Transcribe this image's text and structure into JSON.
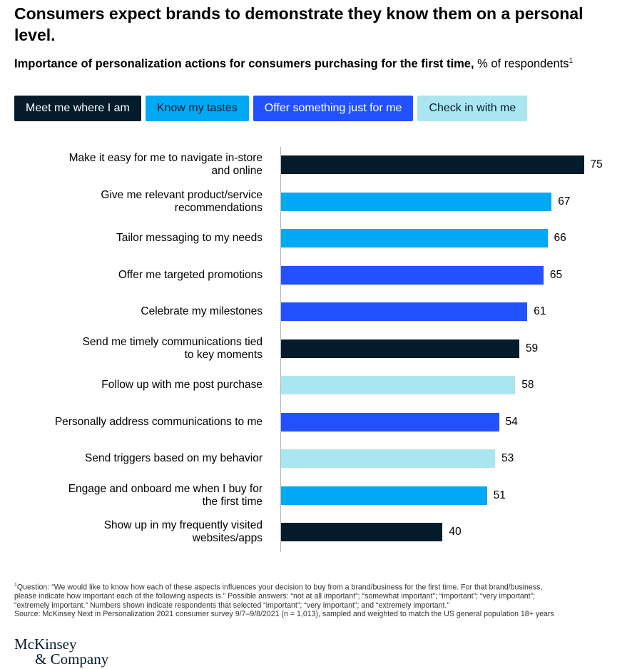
{
  "title": "Consumers expect brands to demonstrate they know them on a personal level.",
  "subtitle_bold": "Importance of personalization actions for consumers purchasing for the first time,",
  "subtitle_regular": " % of respondents",
  "subtitle_sup": "1",
  "colors": {
    "dark": "#051c2c",
    "cyan": "#00a9f4",
    "blue": "#2251ff",
    "light": "#aae6f0"
  },
  "legend": [
    {
      "label": "Meet me where I am",
      "color": "#051c2c",
      "text_color": "#ffffff"
    },
    {
      "label": "Know my tastes",
      "color": "#00a9f4",
      "text_color": "#051c2c"
    },
    {
      "label": "Offer something just for me",
      "color": "#2251ff",
      "text_color": "#ffffff"
    },
    {
      "label": "Check in with me",
      "color": "#aae6f0",
      "text_color": "#051c2c"
    }
  ],
  "chart_data": {
    "type": "bar",
    "orientation": "horizontal",
    "title": "Importance of personalization actions for consumers purchasing for the first time",
    "xlabel": "% of respondents",
    "ylabel": "",
    "xlim": [
      0,
      100
    ],
    "grid": false,
    "categories": [
      [
        "Make it easy for me to navigate in-store",
        "and online"
      ],
      [
        "Give me relevant product/service",
        "recommendations"
      ],
      [
        "Tailor messaging to my needs"
      ],
      [
        "Offer me targeted promotions"
      ],
      [
        "Celebrate my milestones"
      ],
      [
        "Send me timely communications tied",
        "to key moments"
      ],
      [
        "Follow up with me post purchase"
      ],
      [
        "Personally address communications to me"
      ],
      [
        "Send triggers based on my behavior"
      ],
      [
        "Engage and onboard me when I buy for",
        "the first time"
      ],
      [
        "Show up in my frequently visited",
        "websites/apps"
      ]
    ],
    "values": [
      75,
      67,
      66,
      65,
      61,
      59,
      58,
      54,
      53,
      51,
      40
    ],
    "groups": [
      "Meet me where I am",
      "Know my tastes",
      "Know my tastes",
      "Offer something just for me",
      "Offer something just for me",
      "Meet me where I am",
      "Check in with me",
      "Offer something just for me",
      "Check in with me",
      "Know my tastes",
      "Meet me where I am"
    ]
  },
  "footnote": [
    {
      "sup": "1",
      "text": "Question: “We would like to know how each of these aspects influences your decision to buy from a brand/business for the first time. For that brand/business,"
    },
    {
      "sup": "",
      "text": " please indicate how important each of the following aspects is.” Possible answers: “not at all important”; “somewhat important”; “important”; “very important”;"
    },
    {
      "sup": "",
      "text": " “extremely important.” Numbers shown indicate respondents that selected “important”; “very important”; and “extremely important.”"
    },
    {
      "sup": "",
      "text": " Source: McKinsey Next in Personalization 2021 consumer survey 9/7–9/8/2021 (n = 1,013), sampled and weighted to match the US general population 18+ years"
    }
  ],
  "logo": {
    "line1": "McKinsey",
    "line2": "& Company"
  }
}
